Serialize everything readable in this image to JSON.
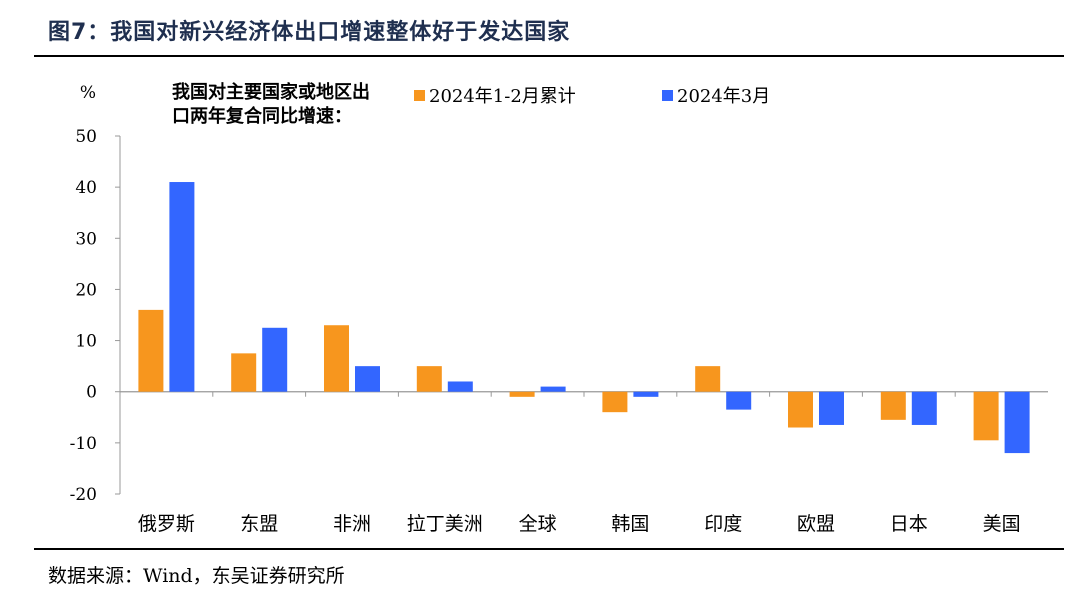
{
  "figure": {
    "title": "图7：我国对新兴经济体出口增速整体好于发达国家",
    "source": "数据来源：Wind，东吴证券研究所"
  },
  "chart_data": {
    "type": "bar",
    "title": "",
    "ylabel": "%",
    "xlabel": "",
    "ylim": [
      -20,
      50
    ],
    "yticks": [
      50,
      40,
      30,
      20,
      10,
      0,
      -10,
      -20
    ],
    "grid": false,
    "legend_placement": "top",
    "legend_note": [
      "我国对主要国家或地区出",
      "口两年复合同比增速："
    ],
    "categories": [
      "俄罗斯",
      "东盟",
      "非洲",
      "拉丁美洲",
      "全球",
      "韩国",
      "印度",
      "欧盟",
      "日本",
      "美国"
    ],
    "series": [
      {
        "name": "2024年1-2月累计",
        "color": "#f7961e",
        "values": [
          16,
          7.5,
          13,
          5,
          -1,
          -4,
          5,
          -7,
          -5.5,
          -9.5
        ]
      },
      {
        "name": "2024年3月",
        "color": "#3366ff",
        "values": [
          41,
          12.5,
          5,
          2,
          1,
          -1,
          -3.5,
          -6.5,
          -6.5,
          -12
        ]
      }
    ]
  }
}
